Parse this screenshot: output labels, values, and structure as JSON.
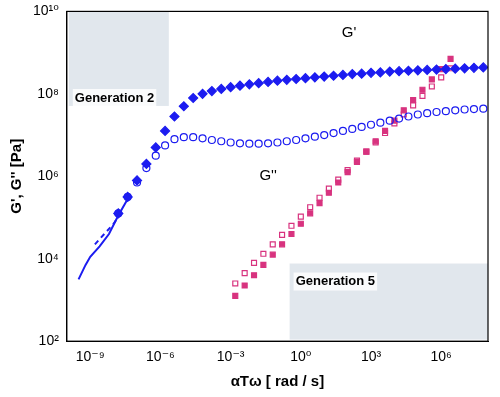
{
  "chart_data": {
    "type": "scatter",
    "log": true,
    "grid": false,
    "x_label": "αTω [ rad / s]",
    "y_label": "G', G'' [Pa]",
    "xlim": [
      1e-10,
      100000000.0
    ],
    "ylim": [
      100.0,
      10000000000.0
    ],
    "xticks": [
      {
        "value": 1e-09,
        "label": "10⁻⁹"
      },
      {
        "value": 1e-06,
        "label": "10⁻⁶"
      },
      {
        "value": 0.001,
        "label": "10⁻³"
      },
      {
        "value": 1,
        "label": "10⁰"
      },
      {
        "value": 1000.0,
        "label": "10³"
      },
      {
        "value": 1000000.0,
        "label": "10⁶"
      }
    ],
    "yticks": [
      {
        "value": 100.0,
        "label": "10²"
      },
      {
        "value": 10000.0,
        "label": "10⁴"
      },
      {
        "value": 1000000.0,
        "label": "10⁶"
      },
      {
        "value": 100000000.0,
        "label": "10⁸"
      },
      {
        "value": 10000000000.0,
        "label": "10¹⁰"
      }
    ],
    "annotations": [
      {
        "text": "G'",
        "x": 56,
        "y": 3000000000.0
      },
      {
        "text": "G''",
        "x": 0.017,
        "y": 1000000.0
      },
      {
        "text": "Generation 2",
        "x": 2.19e-10,
        "y": 79400000.0
      },
      {
        "text": "Generation 5",
        "x": 0.6,
        "y": 2800
      }
    ],
    "series": [
      {
        "type": "line",
        "line_style": "solid",
        "color": "#1c1cf0",
        "x": [
          3.16e-10,
          6.31e-10,
          1e-09,
          2.51e-09,
          6.31e-09,
          1.58e-08,
          3.98e-08
        ],
        "values": [
          3160,
          7080,
          11200,
          20000,
          39800,
          112000,
          282000
        ]
      },
      {
        "type": "line",
        "line_style": "dashed",
        "color": "#1c1cf0",
        "x": [
          1.58e-09,
          3.98e-09,
          1e-08,
          2.51e-08
        ],
        "values": [
          22400,
          39800,
          70800,
          158000
        ]
      },
      {
        "type": "scatter",
        "marker": "diamond",
        "color": "#1c1cf0",
        "x": [
          1.58e-08,
          3.98e-08,
          1e-07,
          2.51e-07,
          6.31e-07,
          1.58e-06,
          3.98e-06,
          1e-05,
          2.51e-05,
          6.31e-05,
          0.000158,
          0.000398,
          0.001,
          0.00251,
          0.00631,
          0.0158,
          0.0398,
          0.1,
          0.251,
          0.631,
          1.58,
          3.98,
          10,
          25.1,
          63.1,
          158,
          398,
          1000,
          2510,
          6310,
          15800,
          39800,
          100000,
          251000,
          631000,
          1580000,
          3980000,
          10000000.0,
          25100000.0,
          63100000.0
        ],
        "values": [
          126000.0,
          316000.0,
          794000.0,
          2000000.0,
          5010000.0,
          12600000.0,
          28200000.0,
          50100000.0,
          79400000.0,
          100000000.0,
          117000000.0,
          132000000.0,
          145000000.0,
          158000000.0,
          170000000.0,
          182000000.0,
          195000000.0,
          209000000.0,
          219000000.0,
          229000000.0,
          240000000.0,
          251000000.0,
          263000000.0,
          275000000.0,
          288000000.0,
          302000000.0,
          309000000.0,
          324000000.0,
          331000000.0,
          347000000.0,
          355000000.0,
          363000000.0,
          372000000.0,
          380000000.0,
          389000000.0,
          398000000.0,
          407000000.0,
          417000000.0,
          427000000.0,
          437000000.0
        ]
      },
      {
        "type": "scatter",
        "marker": "open_circle",
        "color": "#1c1cf0",
        "x": [
          1.58e-08,
          3.98e-08,
          1e-07,
          2.51e-07,
          6.31e-07,
          1.58e-06,
          3.98e-06,
          1e-05,
          2.51e-05,
          6.31e-05,
          0.000158,
          0.000398,
          0.001,
          0.00251,
          0.00631,
          0.0158,
          0.0398,
          0.1,
          0.251,
          0.631,
          1.58,
          3.98,
          10,
          25.1,
          63.1,
          158,
          398,
          1000,
          2510,
          6310,
          15800,
          39800,
          100000,
          251000,
          631000,
          1580000,
          3980000,
          10000000.0,
          25100000.0,
          63100000.0
        ],
        "values": [
          126000.0,
          316000.0,
          708000.0,
          1580000.0,
          3160000.0,
          5620000.0,
          7940000.0,
          8910000.0,
          8910000.0,
          8320000.0,
          7590000.0,
          7080000.0,
          6610000.0,
          6310000.0,
          6170000.0,
          6170000.0,
          6310000.0,
          6610000.0,
          7080000.0,
          7590000.0,
          8320000.0,
          9120000.0,
          10000000.0,
          11200000.0,
          12600000.0,
          14100000.0,
          15800000.0,
          17800000.0,
          20000000.0,
          22400000.0,
          25100000.0,
          28200000.0,
          31600000.0,
          33900000.0,
          36300000.0,
          38000000.0,
          39800000.0,
          41700000.0,
          42700000.0,
          43700000.0
        ]
      },
      {
        "type": "scatter",
        "marker": "square",
        "color": "#d8337f",
        "x": [
          0.00158,
          0.00398,
          0.01,
          0.0251,
          0.0631,
          0.158,
          0.398,
          1,
          2.51,
          6.31,
          15.8,
          39.8,
          100,
          251,
          631,
          1580,
          3980,
          10000,
          25100,
          63100,
          158000,
          398000,
          1000000,
          2510000
        ],
        "values": [
          1260,
          2240,
          3980,
          7080,
          12600,
          22400,
          39800,
          70800,
          126000,
          224000,
          398000,
          708000,
          1260000,
          2240000,
          3980000,
          7080000,
          12600000.0,
          22400000.0,
          39800000.0,
          70800000.0,
          126000000.0,
          224000000.0,
          398000000.0,
          708000000.0
        ]
      },
      {
        "type": "scatter",
        "marker": "open_square",
        "color": "#d8337f",
        "x": [
          0.00158,
          0.00398,
          0.01,
          0.0251,
          0.0631,
          0.158,
          0.398,
          1,
          2.51,
          6.31,
          15.8,
          39.8,
          100,
          251,
          631,
          1580,
          3980,
          10000,
          25100,
          63100,
          158000,
          398000,
          1000000,
          2510000
        ],
        "values": [
          2510,
          4470,
          7940,
          13200,
          22400,
          38000,
          63100,
          105000,
          178000,
          302000,
          501000,
          832000,
          1410000,
          2400000,
          3980000,
          6610000,
          11200000.0,
          19100000.0,
          31600000.0,
          52500000.0,
          89100000.0,
          151000000.0,
          251000000.0,
          417000000.0
        ]
      }
    ]
  }
}
